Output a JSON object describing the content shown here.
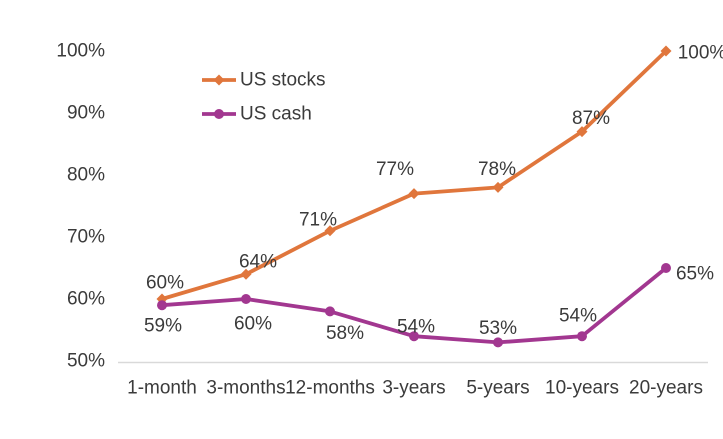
{
  "chart_data": {
    "type": "line",
    "title": "",
    "xlabel": "",
    "ylabel": "",
    "categories": [
      "1-month",
      "3-months",
      "12-months",
      "3-years",
      "5-years",
      "10-years",
      "20-years"
    ],
    "series": [
      {
        "name": "US stocks",
        "values": [
          60,
          64,
          71,
          77,
          78,
          87,
          100
        ],
        "data_labels": [
          "60%",
          "64%",
          "71%",
          "77%",
          "78%",
          "87%",
          "100%"
        ],
        "color": "#E0763C",
        "marker": "diamond",
        "label_offsets": [
          [
            3,
            -16
          ],
          [
            12,
            -12
          ],
          [
            -12,
            -11
          ],
          [
            -19,
            -24
          ],
          [
            -1,
            -18
          ],
          [
            9,
            -13
          ],
          [
            36,
            2
          ]
        ]
      },
      {
        "name": "US cash",
        "values": [
          59,
          60,
          58,
          54,
          53,
          54,
          65
        ],
        "data_labels": [
          "59%",
          "60%",
          "58%",
          "54%",
          "53%",
          "54%",
          "65%"
        ],
        "color": "#A23790",
        "marker": "circle",
        "label_offsets": [
          [
            1,
            21
          ],
          [
            7,
            25
          ],
          [
            15,
            22
          ],
          [
            2,
            -9
          ],
          [
            0,
            -14
          ],
          [
            -4,
            -20
          ],
          [
            29,
            6
          ]
        ]
      }
    ],
    "y_ticks": [
      {
        "value": 100,
        "label": "100%"
      },
      {
        "value": 90,
        "label": "90%"
      },
      {
        "value": 80,
        "label": "80%"
      },
      {
        "value": 70,
        "label": "70%"
      },
      {
        "value": 60,
        "label": "60%"
      },
      {
        "value": 50,
        "label": "50%"
      }
    ],
    "ylim": [
      50,
      100
    ],
    "grid": false,
    "axis_line_only_at_bottom": true,
    "legend_position": "inside-top-left",
    "data_label_format": "{v}%"
  },
  "colors": {
    "background": "#ffffff",
    "text": "#3b3b3b",
    "axis_line": "#d9d9d9",
    "stocks_accent": "#E0763C",
    "cash_accent": "#A23790"
  }
}
